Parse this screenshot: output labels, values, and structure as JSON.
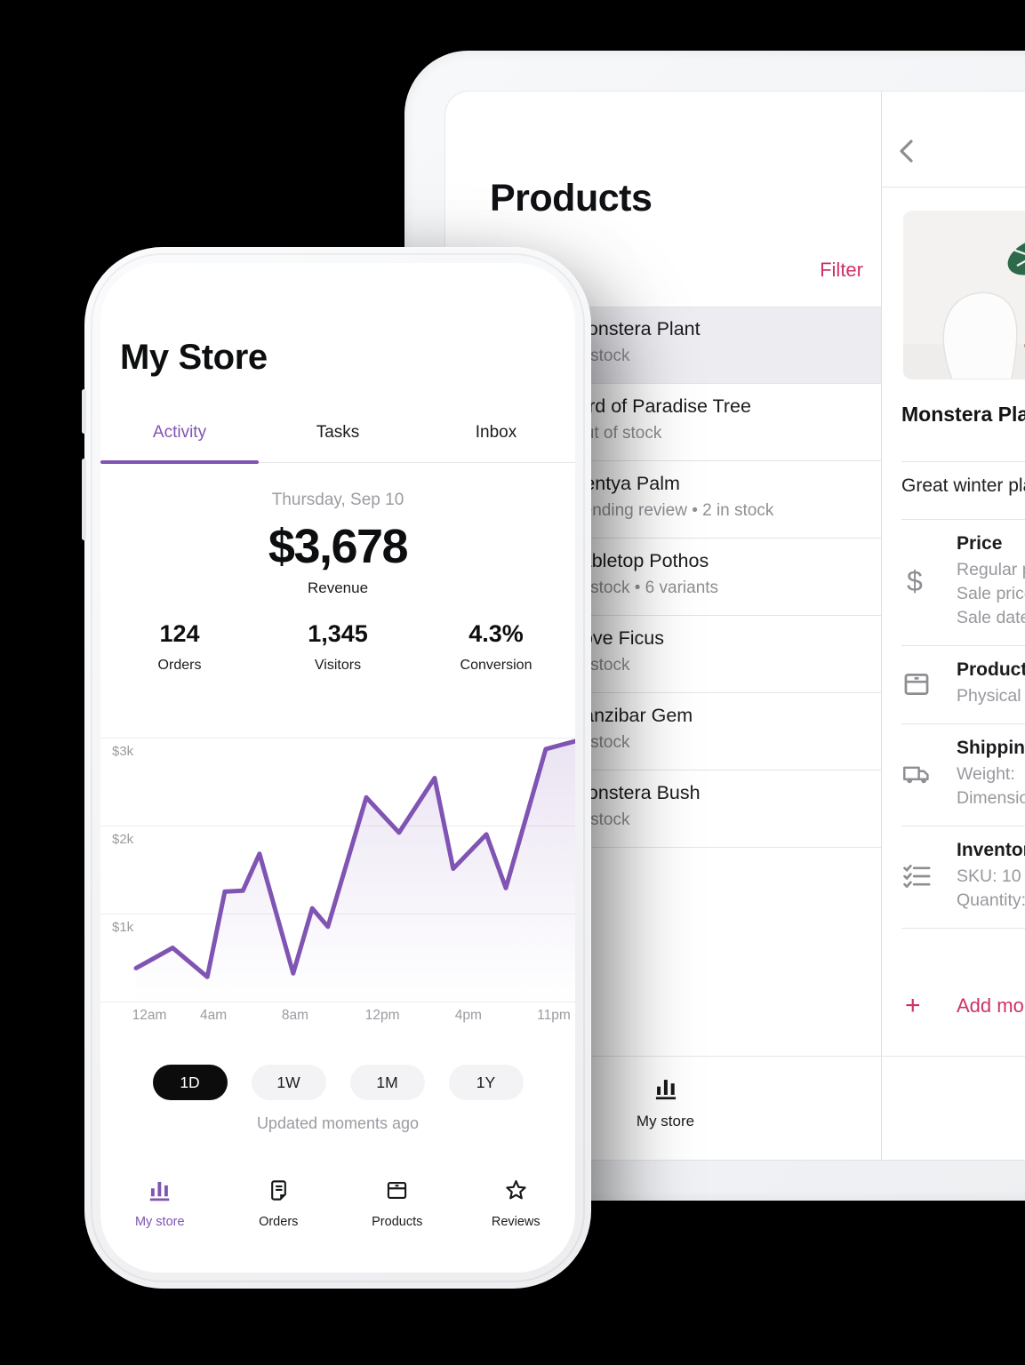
{
  "colors": {
    "purple": "#7f54b3",
    "pink": "#ce3268",
    "chart_fill": "#7f54b3",
    "selected_row_bg": "#ececf1"
  },
  "phone": {
    "title": "My Store",
    "tabs": [
      {
        "label": "Activity"
      },
      {
        "label": "Tasks"
      },
      {
        "label": "Inbox"
      }
    ],
    "active_tab": "Activity",
    "summary": {
      "date": "Thursday, Sep 10",
      "revenue_value": "$3,678",
      "revenue_label": "Revenue",
      "stats": [
        {
          "value": "124",
          "label": "Orders"
        },
        {
          "value": "1,345",
          "label": "Visitors"
        },
        {
          "value": "4.3%",
          "label": "Conversion"
        }
      ]
    },
    "range_buttons": [
      {
        "label": "1D"
      },
      {
        "label": "1W"
      },
      {
        "label": "1M"
      },
      {
        "label": "1Y"
      }
    ],
    "active_range": "1D",
    "updated_text": "Updated moments ago",
    "nav_items": [
      {
        "label": "My store",
        "icon": "bar-chart-icon"
      },
      {
        "label": "Orders",
        "icon": "orders-document-icon"
      },
      {
        "label": "Products",
        "icon": "products-box-icon"
      },
      {
        "label": "Reviews",
        "icon": "star-icon"
      }
    ],
    "active_nav": "My store"
  },
  "chart_data": {
    "type": "area",
    "series": [
      {
        "name": "Revenue",
        "color": "#7f54b3",
        "points": [
          [
            7.5,
            380
          ],
          [
            11.2,
            490
          ],
          [
            15.2,
            610
          ],
          [
            22.5,
            280
          ],
          [
            26.2,
            1250
          ],
          [
            30.0,
            1260
          ],
          [
            33.5,
            1680
          ],
          [
            40.6,
            320
          ],
          [
            44.6,
            1060
          ],
          [
            47.9,
            850
          ],
          [
            56.0,
            2320
          ],
          [
            62.9,
            1920
          ],
          [
            70.4,
            2540
          ],
          [
            74.3,
            1510
          ],
          [
            81.3,
            1900
          ],
          [
            85.4,
            1290
          ],
          [
            93.8,
            2870
          ],
          [
            100,
            2960
          ]
        ]
      }
    ],
    "x_labels": [
      "12am",
      "4am",
      "8am",
      "12pm",
      "4pm",
      "11pm"
    ],
    "x_label_positions": [
      10.3,
      23.8,
      41.0,
      59.4,
      77.5,
      95.5
    ],
    "y_ticks": [
      {
        "label": "$3k",
        "value": 3000
      },
      {
        "label": "$2k",
        "value": 2000
      },
      {
        "label": "$1k",
        "value": 1000
      }
    ],
    "ylim": [
      0,
      3100
    ],
    "grid": "horizontal",
    "legend": "none"
  },
  "tablet": {
    "list_panel": {
      "title": "Products",
      "filter_label": "Filter",
      "products": [
        {
          "name": "Monstera Plant",
          "status": "In stock",
          "selected": true
        },
        {
          "name": "Bird of Paradise Tree",
          "status": "Out of stock",
          "selected": false
        },
        {
          "name": "Kentya Palm",
          "status": "Pending review • 2 in stock",
          "selected": false
        },
        {
          "name": "Tabletop Pothos",
          "status": "In stock • 6 variants",
          "selected": false
        },
        {
          "name": "Love Ficus",
          "status": "In stock",
          "selected": false
        },
        {
          "name": "Zanzibar Gem",
          "status": "In stock",
          "selected": false
        },
        {
          "name": "Monstera Bush",
          "status": "In stock",
          "selected": false
        }
      ],
      "bottom_tab": {
        "label": "My store",
        "icon": "bar-chart-icon"
      }
    },
    "detail_panel": {
      "product_title": "Monstera Plant",
      "description": "Great winter plant",
      "dollar_glyph": "$",
      "plus_glyph": "+",
      "sections": [
        {
          "icon": "dollar-icon",
          "title": "Price",
          "lines": [
            "Regular price",
            "Sale price",
            "Sale dates"
          ]
        },
        {
          "icon": "products-box-icon",
          "title": "Product",
          "lines": [
            "Physical product"
          ]
        },
        {
          "icon": "truck-icon",
          "title": "Shipping",
          "lines": [
            "Weight:",
            "Dimensions:"
          ]
        },
        {
          "icon": "checklist-icon",
          "title": "Inventory",
          "lines": [
            "SKU: 10",
            "Quantity:"
          ]
        }
      ],
      "add_more_label": "Add more"
    }
  }
}
